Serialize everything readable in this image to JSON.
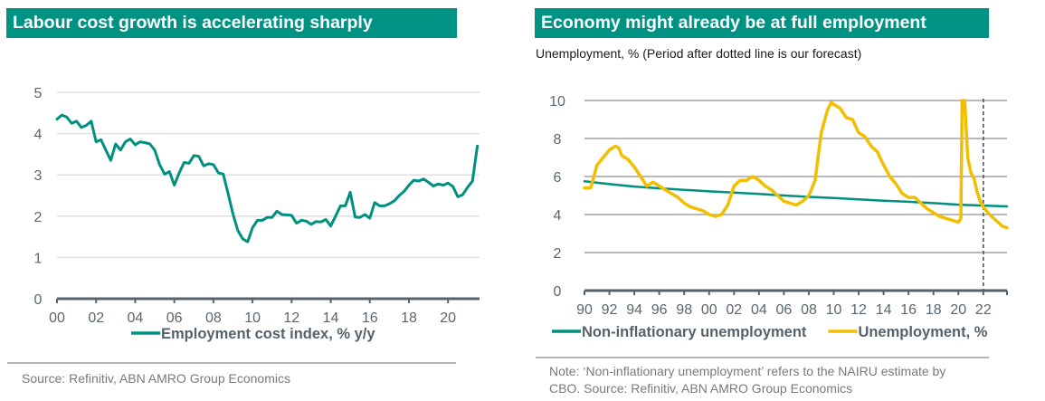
{
  "colors": {
    "title_bg": "#009283",
    "teal_series": "#00907f",
    "yellow_series": "#f2be00",
    "axis": "#56636d",
    "grid": "#d9d9d9",
    "grid_dark": "#8c8c8c"
  },
  "left": {
    "title": "Labour cost growth is accelerating sharply",
    "source": "Source: Refinitiv, ABN AMRO Group Economics"
  },
  "right": {
    "title": "Economy might already be at full employment",
    "subtitle": "Unemployment, % (Period after dotted line is our forecast)",
    "note_line1": "Note: ‘Non-inflationary unemployment’ refers to the NAIRU estimate by",
    "note_line2": "CBO. Source: Refinitiv, ABN AMRO Group Economics"
  },
  "chart_data": [
    {
      "type": "line",
      "title": "Labour cost growth is accelerating sharply",
      "xlabel": "",
      "ylabel": "",
      "xlim": [
        2000,
        2021.75
      ],
      "ylim": [
        0,
        5
      ],
      "yticks": [
        0,
        1,
        2,
        3,
        4,
        5
      ],
      "xticks": [
        2000,
        2002,
        2004,
        2006,
        2008,
        2010,
        2012,
        2014,
        2016,
        2018,
        2020
      ],
      "xtick_labels": [
        "00",
        "02",
        "04",
        "06",
        "08",
        "10",
        "12",
        "14",
        "16",
        "18",
        "20"
      ],
      "grid": true,
      "legend_position": "bottom",
      "series": [
        {
          "name": "Employment cost index, % y/y",
          "color": "#00907f",
          "x": [
            2000.0,
            2000.25,
            2000.5,
            2000.75,
            2001.0,
            2001.25,
            2001.5,
            2001.75,
            2002.0,
            2002.25,
            2002.5,
            2002.75,
            2003.0,
            2003.25,
            2003.5,
            2003.75,
            2004.0,
            2004.25,
            2004.5,
            2004.75,
            2005.0,
            2005.25,
            2005.5,
            2005.75,
            2006.0,
            2006.25,
            2006.5,
            2006.75,
            2007.0,
            2007.25,
            2007.5,
            2007.75,
            2008.0,
            2008.25,
            2008.5,
            2008.75,
            2009.0,
            2009.25,
            2009.5,
            2009.75,
            2010.0,
            2010.25,
            2010.5,
            2010.75,
            2011.0,
            2011.25,
            2011.5,
            2011.75,
            2012.0,
            2012.25,
            2012.5,
            2012.75,
            2013.0,
            2013.25,
            2013.5,
            2013.75,
            2014.0,
            2014.25,
            2014.5,
            2014.75,
            2015.0,
            2015.25,
            2015.5,
            2015.75,
            2016.0,
            2016.25,
            2016.5,
            2016.75,
            2017.0,
            2017.25,
            2017.5,
            2017.75,
            2018.0,
            2018.25,
            2018.5,
            2018.75,
            2019.0,
            2019.25,
            2019.5,
            2019.75,
            2020.0,
            2020.25,
            2020.5,
            2020.75,
            2021.0,
            2021.25,
            2021.5
          ],
          "values": [
            4.35,
            4.45,
            4.4,
            4.25,
            4.3,
            4.15,
            4.2,
            4.3,
            3.8,
            3.85,
            3.6,
            3.35,
            3.75,
            3.6,
            3.8,
            3.87,
            3.73,
            3.8,
            3.78,
            3.75,
            3.6,
            3.25,
            3.02,
            3.08,
            2.75,
            3.05,
            3.3,
            3.28,
            3.47,
            3.45,
            3.22,
            3.27,
            3.25,
            3.05,
            3.02,
            2.55,
            2.05,
            1.65,
            1.45,
            1.38,
            1.72,
            1.9,
            1.9,
            1.97,
            1.97,
            2.12,
            2.04,
            2.03,
            2.02,
            1.83,
            1.9,
            1.88,
            1.8,
            1.87,
            1.86,
            1.92,
            1.76,
            2.0,
            2.25,
            2.25,
            2.58,
            1.98,
            1.97,
            2.04,
            1.95,
            2.33,
            2.25,
            2.25,
            2.3,
            2.37,
            2.5,
            2.6,
            2.75,
            2.87,
            2.85,
            2.9,
            2.82,
            2.73,
            2.78,
            2.75,
            2.8,
            2.72,
            2.47,
            2.52,
            2.7,
            2.85,
            3.7
          ]
        }
      ]
    },
    {
      "type": "line",
      "title": "Economy might already be at full employment",
      "subtitle": "Unemployment, % (Period after dotted line is our forecast)",
      "xlabel": "",
      "ylabel": "",
      "xlim": [
        1990,
        2023.9
      ],
      "ylim": [
        0,
        10
      ],
      "yticks": [
        0,
        2,
        4,
        6,
        8,
        10
      ],
      "xticks": [
        1990,
        1992,
        1994,
        1996,
        1998,
        2000,
        2002,
        2004,
        2006,
        2008,
        2010,
        2012,
        2014,
        2016,
        2018,
        2020,
        2022
      ],
      "xtick_labels": [
        "90",
        "92",
        "94",
        "96",
        "98",
        "00",
        "02",
        "04",
        "06",
        "08",
        "10",
        "12",
        "14",
        "16",
        "18",
        "20",
        "22"
      ],
      "grid": true,
      "forecast_start": 2022,
      "legend_position": "bottom",
      "series": [
        {
          "name": "Non-inflationary unemployment",
          "color": "#00907f",
          "x": [
            1990,
            1992,
            1994,
            1996,
            1998,
            2000,
            2002,
            2004,
            2006,
            2008,
            2010,
            2012,
            2014,
            2016,
            2018,
            2020,
            2022,
            2023.9
          ],
          "values": [
            5.75,
            5.6,
            5.47,
            5.38,
            5.3,
            5.22,
            5.15,
            5.08,
            5.0,
            4.93,
            4.87,
            4.8,
            4.73,
            4.67,
            4.6,
            4.52,
            4.47,
            4.43
          ]
        },
        {
          "name": "Unemployment, %",
          "color": "#f2be00",
          "x": [
            1990.0,
            1990.5,
            1991.0,
            1991.5,
            1992.0,
            1992.5,
            1992.75,
            1993.0,
            1993.5,
            1994.0,
            1994.5,
            1995.0,
            1995.5,
            1996.0,
            1996.5,
            1997.0,
            1997.5,
            1998.0,
            1998.5,
            1999.0,
            1999.5,
            2000.0,
            2000.5,
            2001.0,
            2001.5,
            2002.0,
            2002.5,
            2003.0,
            2003.5,
            2004.0,
            2004.5,
            2005.0,
            2005.5,
            2006.0,
            2006.5,
            2007.0,
            2007.5,
            2008.0,
            2008.5,
            2009.0,
            2009.5,
            2009.8,
            2010.0,
            2010.5,
            2011.0,
            2011.5,
            2012.0,
            2012.5,
            2013.0,
            2013.5,
            2014.0,
            2014.5,
            2015.0,
            2015.5,
            2016.0,
            2016.5,
            2017.0,
            2017.5,
            2018.0,
            2018.5,
            2019.0,
            2019.5,
            2020.0,
            2020.2,
            2020.3,
            2020.5,
            2020.75,
            2021.0,
            2021.25,
            2021.5,
            2021.75,
            2022.0,
            2022.5,
            2023.0,
            2023.5,
            2023.9
          ],
          "values": [
            5.4,
            5.4,
            6.6,
            7.0,
            7.4,
            7.6,
            7.5,
            7.1,
            6.9,
            6.5,
            6.0,
            5.5,
            5.7,
            5.5,
            5.3,
            5.1,
            4.9,
            4.6,
            4.4,
            4.3,
            4.2,
            4.0,
            3.9,
            4.0,
            4.5,
            5.5,
            5.8,
            5.8,
            6.0,
            5.8,
            5.5,
            5.3,
            5.0,
            4.7,
            4.6,
            4.5,
            4.7,
            5.0,
            5.8,
            8.3,
            9.5,
            9.9,
            9.8,
            9.6,
            9.1,
            9.0,
            8.3,
            8.1,
            7.6,
            7.3,
            6.6,
            6.0,
            5.6,
            5.1,
            4.9,
            4.9,
            4.6,
            4.3,
            4.1,
            3.9,
            3.8,
            3.7,
            3.6,
            3.8,
            10.0,
            10.0,
            7.0,
            6.2,
            5.9,
            5.2,
            4.7,
            4.4,
            4.0,
            3.7,
            3.4,
            3.3
          ]
        }
      ]
    }
  ]
}
